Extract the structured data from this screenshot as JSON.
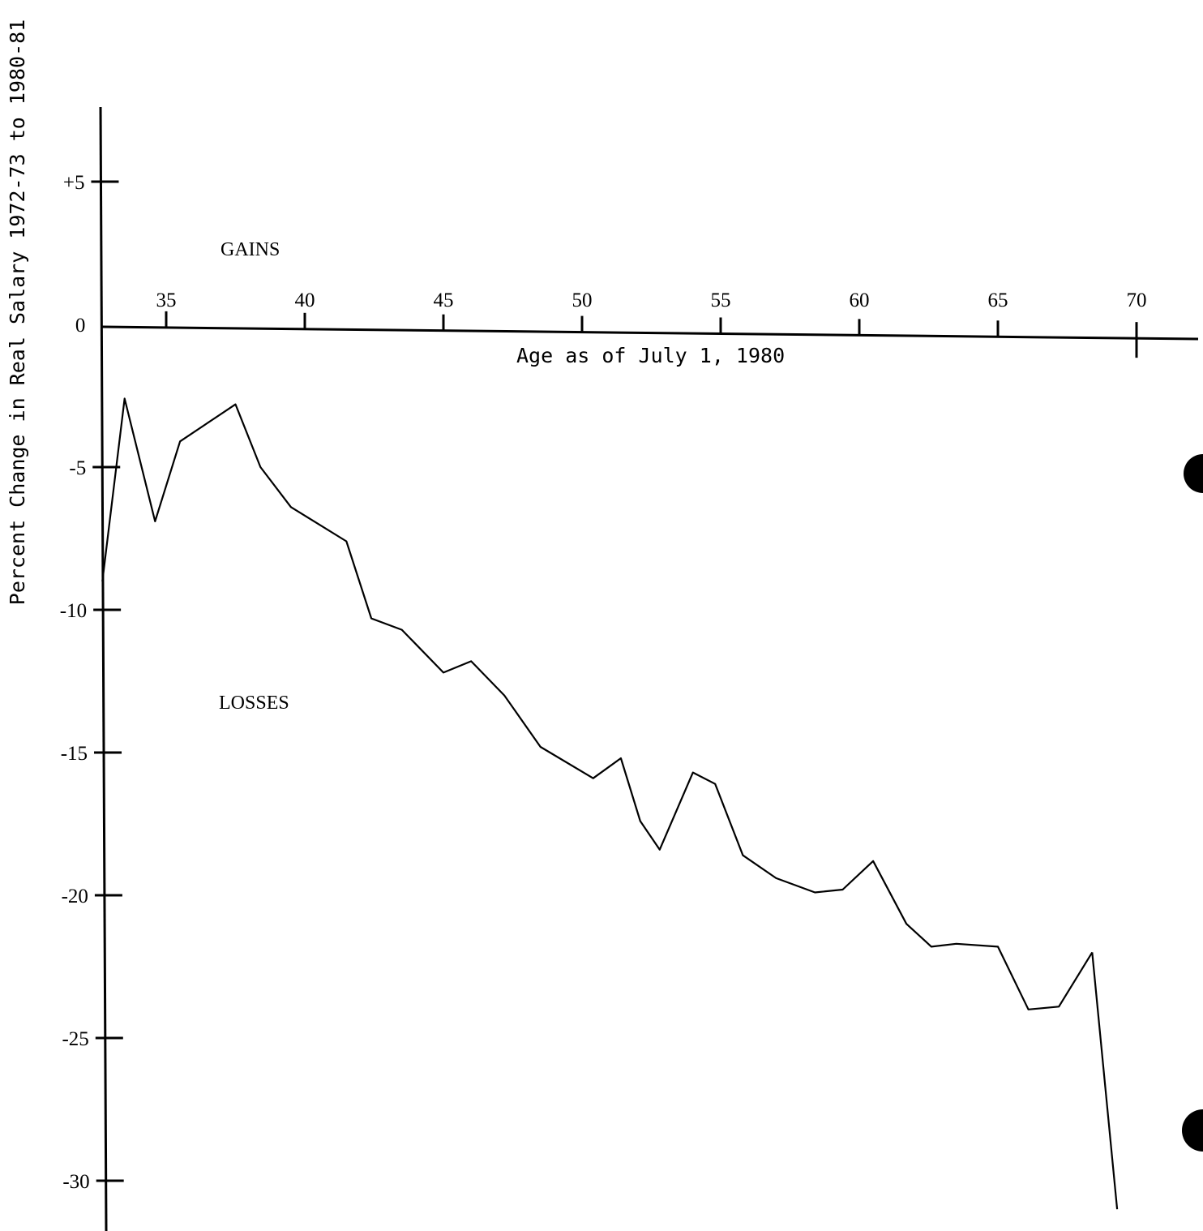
{
  "chart_data": {
    "type": "line",
    "title": "",
    "xlabel": "Age as of July 1, 1980",
    "ylabel": "Percent Change in Real Salary 1972-73 to 1980-81",
    "x_ticks": [
      35,
      40,
      45,
      50,
      55,
      60,
      65,
      70
    ],
    "x_tick_labels": [
      "35",
      "40",
      "45",
      "50",
      "55",
      "60",
      "65",
      "70"
    ],
    "y_ticks": [
      5,
      0,
      -5,
      -10,
      -15,
      -20,
      -25,
      -30
    ],
    "y_tick_labels": [
      "+5",
      "0",
      "-5",
      "-10",
      "-15",
      "-20",
      "-25",
      "-30"
    ],
    "xlim": [
      32.6,
      70.5
    ],
    "ylim": [
      -31.8,
      7.5
    ],
    "grid": false,
    "annotations": [
      "GAINS",
      "LOSSES"
    ],
    "series": [
      {
        "x": [
          32.7,
          33.5,
          34.6,
          35.5,
          37.5,
          38.4,
          39.5,
          41.5,
          42.4,
          43.5,
          45.0,
          46.0,
          47.2,
          48.5,
          50.4,
          51.4,
          52.1,
          52.8,
          54.0,
          54.8,
          55.8,
          57.0,
          58.4,
          59.4,
          60.5,
          61.7,
          62.6,
          63.5,
          65.0,
          66.1,
          67.2,
          68.4
        ],
        "y": [
          -9.0,
          -2.6,
          -6.9,
          -4.1,
          -2.8,
          -5.0,
          -6.4,
          -7.6,
          -10.3,
          -10.7,
          -12.2,
          -11.8,
          -13.0,
          -14.8,
          -15.9,
          -15.2,
          -17.4,
          -18.4,
          -15.7,
          -16.1,
          -18.6,
          -19.4,
          -19.9,
          -19.8,
          -18.8,
          -21.0,
          -21.8,
          -21.7,
          -21.8,
          -24.0,
          -23.9,
          -22.0
        ]
      },
      {
        "x": [
          68.4,
          69.3
        ],
        "y": [
          -22.0,
          -31.0
        ]
      }
    ]
  }
}
